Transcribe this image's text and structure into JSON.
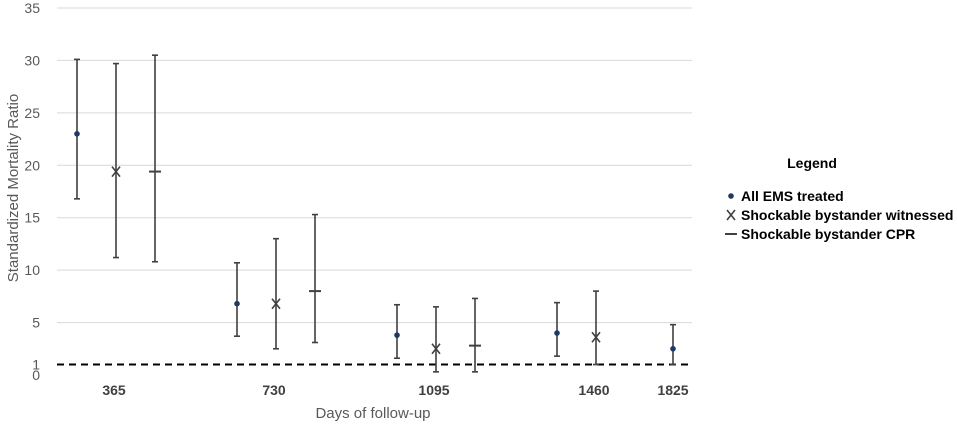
{
  "chart_data": {
    "type": "scatter",
    "xlabel": "Days of follow-up",
    "ylabel": "Standardized Mortality Ratio",
    "ylim": [
      0,
      35
    ],
    "y_ticks": [
      "0",
      "1",
      "5",
      "10",
      "15",
      "20",
      "25",
      "30",
      "35"
    ],
    "x_ticks": [
      "365",
      "730",
      "1095",
      "1460",
      "1825"
    ],
    "grid": "horizontal",
    "reference_line": {
      "y": 1,
      "style": "dashed"
    },
    "legend": {
      "title": "Legend",
      "position": "right",
      "entries": [
        "All EMS treated",
        "Shockable bystander witnessed",
        "Shockable bystander CPR"
      ]
    },
    "series": [
      {
        "name": "All EMS treated",
        "marker": "dot",
        "color": "#1f3864",
        "points": [
          {
            "x": "365",
            "y": 23.0,
            "lo": 16.8,
            "hi": 30.1
          },
          {
            "x": "730",
            "y": 6.8,
            "lo": 3.7,
            "hi": 10.7
          },
          {
            "x": "1095",
            "y": 3.8,
            "lo": 1.6,
            "hi": 6.7
          },
          {
            "x": "1460",
            "y": 4.0,
            "lo": 1.8,
            "hi": 6.9
          },
          {
            "x": "1825",
            "y": 2.5,
            "lo": 1.0,
            "hi": 4.8
          }
        ]
      },
      {
        "name": "Shockable bystander witnessed",
        "marker": "x",
        "color": "#404040",
        "points": [
          {
            "x": "365",
            "y": 19.4,
            "lo": 11.2,
            "hi": 29.7
          },
          {
            "x": "730",
            "y": 6.8,
            "lo": 2.5,
            "hi": 13.0
          },
          {
            "x": "1095",
            "y": 2.5,
            "lo": 0.3,
            "hi": 6.5
          },
          {
            "x": "1460",
            "y": 3.6,
            "lo": 1.0,
            "hi": 8.0
          }
        ]
      },
      {
        "name": "Shockable bystander CPR",
        "marker": "dash",
        "color": "#404040",
        "points": [
          {
            "x": "365",
            "y": 19.4,
            "lo": 10.8,
            "hi": 30.5
          },
          {
            "x": "730",
            "y": 8.0,
            "lo": 3.1,
            "hi": 15.3
          },
          {
            "x": "1095",
            "y": 2.8,
            "lo": 0.3,
            "hi": 7.3
          }
        ]
      }
    ]
  }
}
